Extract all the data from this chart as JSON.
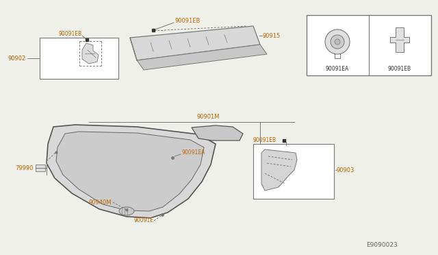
{
  "bg_color": "#f0f0eb",
  "watermark": "E9090023",
  "parts": {
    "p90902": "90902",
    "p90091EB_tl": "90091EB",
    "p90091EB_tc": "90091EB",
    "p90915": "90915",
    "p90901M": "90901M",
    "p79990": "79990",
    "p90091EA_bc": "90091EA",
    "p90091EB_br": "90091EB",
    "p90903": "90903",
    "p90940M": "90940M",
    "p90091E": "90091E",
    "p90091EA_leg": "90091EA",
    "p90091EB_leg": "90091EB"
  },
  "lc": "#777777",
  "tc": "#bb6600",
  "fs": 6.0,
  "bg": "#f0f0eb"
}
